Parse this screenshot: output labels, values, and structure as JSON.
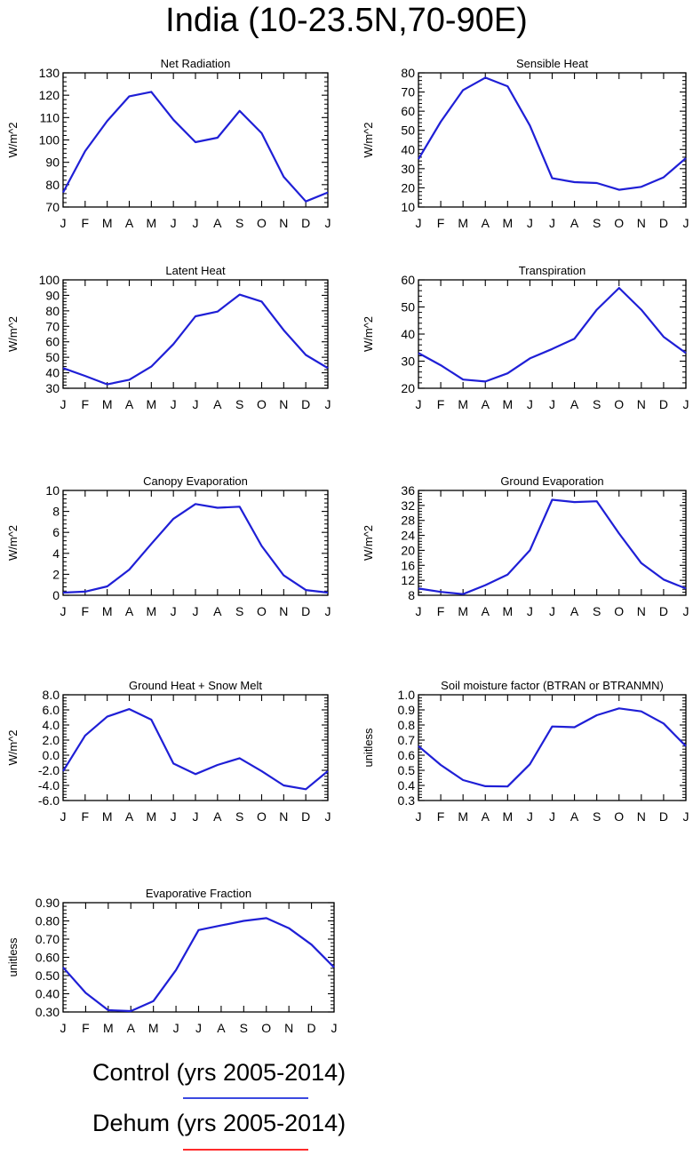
{
  "title": "India (10-23.5N,70-90E)",
  "months": [
    "J",
    "F",
    "M",
    "A",
    "M",
    "J",
    "J",
    "A",
    "S",
    "O",
    "N",
    "D",
    "J"
  ],
  "series_colors": {
    "control": "#1f1fd6",
    "dehum": "#ff2a2a"
  },
  "legend": [
    {
      "label": "Control (yrs 2005-2014)",
      "color": "#3b49e0"
    },
    {
      "label": "Dehum (yrs 2005-2014)",
      "color": "#ff2a2a"
    }
  ],
  "chart_data": [
    {
      "type": "line",
      "title": "Net Radiation",
      "ylabel": "W/m^2",
      "ylim": [
        70,
        130
      ],
      "yticks": [
        "70",
        "80",
        "90",
        "100",
        "110",
        "120",
        "130"
      ],
      "categories": [
        "J",
        "F",
        "M",
        "A",
        "M",
        "J",
        "J",
        "A",
        "S",
        "O",
        "N",
        "D",
        "J"
      ],
      "series": [
        {
          "name": "Control (yrs 2005-2014)",
          "values": [
            76.5,
            95,
            108.5,
            119.5,
            121.5,
            109,
            99,
            101,
            113,
            103,
            83.5,
            72.5,
            76.5
          ]
        }
      ]
    },
    {
      "type": "line",
      "title": "Sensible Heat",
      "ylabel": "W/m^2",
      "ylim": [
        10,
        80
      ],
      "yticks": [
        "10",
        "20",
        "30",
        "40",
        "50",
        "60",
        "70",
        "80"
      ],
      "categories": [
        "J",
        "F",
        "M",
        "A",
        "M",
        "J",
        "J",
        "A",
        "S",
        "O",
        "N",
        "D",
        "J"
      ],
      "series": [
        {
          "name": "Control (yrs 2005-2014)",
          "values": [
            35,
            54.5,
            71,
            77.5,
            73,
            52.5,
            25,
            23,
            22.5,
            19,
            20.5,
            25.5,
            35.5
          ]
        }
      ]
    },
    {
      "type": "line",
      "title": "Latent Heat",
      "ylabel": "W/m^2",
      "ylim": [
        30,
        100
      ],
      "yticks": [
        "30",
        "40",
        "50",
        "60",
        "70",
        "80",
        "90",
        "100"
      ],
      "categories": [
        "J",
        "F",
        "M",
        "A",
        "M",
        "J",
        "J",
        "A",
        "S",
        "O",
        "N",
        "D",
        "J"
      ],
      "series": [
        {
          "name": "Control (yrs 2005-2014)",
          "values": [
            43,
            38,
            32.5,
            35.5,
            44,
            58.5,
            76.5,
            79.5,
            90.5,
            86,
            67.5,
            51.5,
            43
          ]
        }
      ]
    },
    {
      "type": "line",
      "title": "Transpiration",
      "ylabel": "W/m^2",
      "ylim": [
        20,
        60
      ],
      "yticks": [
        "20",
        "30",
        "40",
        "50",
        "60"
      ],
      "categories": [
        "J",
        "F",
        "M",
        "A",
        "M",
        "J",
        "J",
        "A",
        "S",
        "O",
        "N",
        "D",
        "J"
      ],
      "series": [
        {
          "name": "Control (yrs 2005-2014)",
          "values": [
            33,
            28.5,
            23.2,
            22.5,
            25.5,
            31,
            34.5,
            38.3,
            49,
            57,
            49,
            39,
            33
          ]
        }
      ]
    },
    {
      "type": "line",
      "title": "Canopy Evaporation",
      "ylabel": "W/m^2",
      "ylim": [
        0,
        10
      ],
      "yticks": [
        "0",
        "2",
        "4",
        "6",
        "8",
        "10"
      ],
      "categories": [
        "J",
        "F",
        "M",
        "A",
        "M",
        "J",
        "J",
        "A",
        "S",
        "O",
        "N",
        "D",
        "J"
      ],
      "series": [
        {
          "name": "Control (yrs 2005-2014)",
          "values": [
            0.25,
            0.35,
            0.85,
            2.45,
            4.9,
            7.3,
            8.7,
            8.35,
            8.45,
            4.7,
            1.9,
            0.5,
            0.25
          ]
        }
      ]
    },
    {
      "type": "line",
      "title": "Ground Evaporation",
      "ylabel": "W/m^2",
      "ylim": [
        8,
        36
      ],
      "yticks": [
        "8",
        "12",
        "16",
        "20",
        "24",
        "28",
        "32",
        "36"
      ],
      "categories": [
        "J",
        "F",
        "M",
        "A",
        "M",
        "J",
        "J",
        "A",
        "S",
        "O",
        "N",
        "D",
        "J"
      ],
      "series": [
        {
          "name": "Control (yrs 2005-2014)",
          "values": [
            9.8,
            8.9,
            8.3,
            10.7,
            13.5,
            20,
            33.5,
            32.9,
            33.1,
            24.5,
            16.6,
            12.2,
            9.8
          ]
        }
      ]
    },
    {
      "type": "line",
      "title": "Ground Heat + Snow Melt",
      "ylabel": "W/m^2",
      "ylim": [
        -6,
        8
      ],
      "yticks": [
        "-6.0",
        "-4.0",
        "-2.0",
        "0.0",
        "2.0",
        "4.0",
        "6.0",
        "8.0"
      ],
      "categories": [
        "J",
        "F",
        "M",
        "A",
        "M",
        "J",
        "J",
        "A",
        "S",
        "O",
        "N",
        "D",
        "J"
      ],
      "series": [
        {
          "name": "Control (yrs 2005-2014)",
          "values": [
            -2.1,
            2.6,
            5.1,
            6.1,
            4.7,
            -1.1,
            -2.5,
            -1.3,
            -0.4,
            -2.1,
            -4,
            -4.5,
            -2.1
          ]
        }
      ]
    },
    {
      "type": "line",
      "title": "Soil moisture factor (BTRAN or BTRANMN)",
      "ylabel": "unitless",
      "ylim": [
        0.3,
        1.0
      ],
      "yticks": [
        "0.3",
        "0.4",
        "0.5",
        "0.6",
        "0.7",
        "0.8",
        "0.9",
        "1.0"
      ],
      "categories": [
        "J",
        "F",
        "M",
        "A",
        "M",
        "J",
        "J",
        "A",
        "S",
        "O",
        "N",
        "D",
        "J"
      ],
      "series": [
        {
          "name": "Control (yrs 2005-2014)",
          "values": [
            0.66,
            0.535,
            0.435,
            0.395,
            0.393,
            0.54,
            0.79,
            0.785,
            0.865,
            0.91,
            0.89,
            0.81,
            0.66
          ]
        }
      ]
    },
    {
      "type": "line",
      "title": "Evaporative Fraction",
      "ylabel": "unitless",
      "ylim": [
        0.3,
        0.9
      ],
      "yticks": [
        "0.30",
        "0.40",
        "0.50",
        "0.60",
        "0.70",
        "0.80",
        "0.90"
      ],
      "categories": [
        "J",
        "F",
        "M",
        "A",
        "M",
        "J",
        "J",
        "A",
        "S",
        "O",
        "N",
        "D",
        "J"
      ],
      "series": [
        {
          "name": "Control (yrs 2005-2014)",
          "values": [
            0.545,
            0.405,
            0.31,
            0.305,
            0.36,
            0.53,
            0.75,
            0.775,
            0.8,
            0.815,
            0.76,
            0.67,
            0.545
          ]
        }
      ]
    }
  ]
}
